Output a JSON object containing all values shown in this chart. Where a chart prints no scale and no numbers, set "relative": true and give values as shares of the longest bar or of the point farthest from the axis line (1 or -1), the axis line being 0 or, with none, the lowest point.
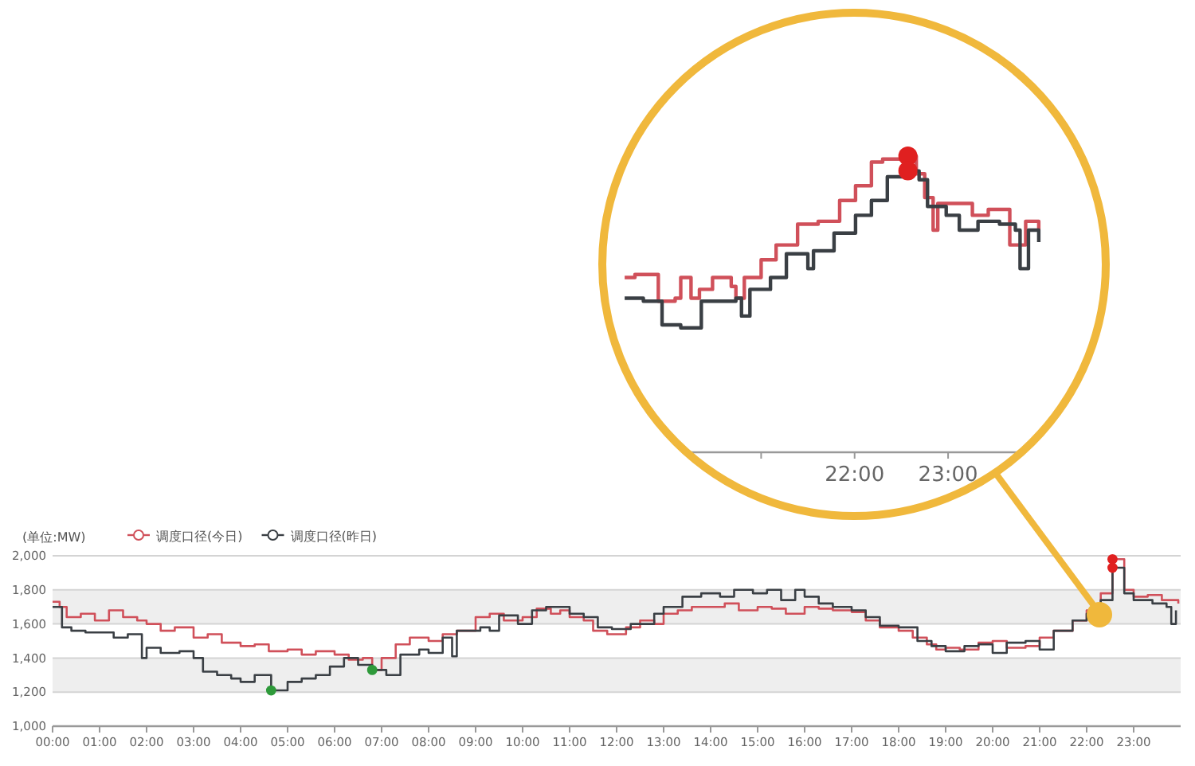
{
  "chart_data": [
    {
      "type": "step",
      "ylabel": "(单位:MW)",
      "legend": "top left",
      "grid": "y",
      "xlim": [
        0,
        24
      ],
      "ylim": [
        1000,
        2000
      ],
      "xticks": [
        {
          "value": 0,
          "label": "00:00"
        },
        {
          "value": 1,
          "label": "01:00"
        },
        {
          "value": 2,
          "label": "02:00"
        },
        {
          "value": 3,
          "label": "03:00"
        },
        {
          "value": 4,
          "label": "04:00"
        },
        {
          "value": 5,
          "label": "05:00"
        },
        {
          "value": 6,
          "label": "06:00"
        },
        {
          "value": 7,
          "label": "07:00"
        },
        {
          "value": 8,
          "label": "08:00"
        },
        {
          "value": 9,
          "label": "09:00"
        },
        {
          "value": 10,
          "label": "10:00"
        },
        {
          "value": 11,
          "label": "11:00"
        },
        {
          "value": 12,
          "label": "12:00"
        },
        {
          "value": 13,
          "label": "13:00"
        },
        {
          "value": 14,
          "label": "14:00"
        },
        {
          "value": 15,
          "label": "15:00"
        },
        {
          "value": 16,
          "label": "16:00"
        },
        {
          "value": 17,
          "label": "17:00"
        },
        {
          "value": 18,
          "label": "18:00"
        },
        {
          "value": 19,
          "label": "19:00"
        },
        {
          "value": 20,
          "label": "20:00"
        },
        {
          "value": 21,
          "label": "21:00"
        },
        {
          "value": 22,
          "label": "22:00"
        },
        {
          "value": 23,
          "label": "23:00"
        }
      ],
      "yticks": [
        {
          "value": 1000,
          "label": "1,000"
        },
        {
          "value": 1200,
          "label": "1,200"
        },
        {
          "value": 1400,
          "label": "1,400"
        },
        {
          "value": 1600,
          "label": "1,600"
        },
        {
          "value": 1800,
          "label": "1,800"
        },
        {
          "value": 2000,
          "label": "2,000"
        }
      ],
      "bands": [
        {
          "axis": "y",
          "from": 1200,
          "to": 1400,
          "color": "#eeeeee"
        },
        {
          "axis": "y",
          "from": 1600,
          "to": 1800,
          "color": "#eeeeee"
        }
      ],
      "series": [
        {
          "name": "调度口径(今日)",
          "color": "#d0505a",
          "x": [
            0,
            0.15,
            0.3,
            0.6,
            0.9,
            1.2,
            1.5,
            1.8,
            2.0,
            2.3,
            2.6,
            3.0,
            3.3,
            3.6,
            4.0,
            4.3,
            4.6,
            5.0,
            5.3,
            5.6,
            6.0,
            6.3,
            6.6,
            6.8,
            7.0,
            7.3,
            7.6,
            8.0,
            8.3,
            8.6,
            9.0,
            9.3,
            9.6,
            10.0,
            10.3,
            10.6,
            10.8,
            11.0,
            11.3,
            11.5,
            11.8,
            12.2,
            12.5,
            12.8,
            13.0,
            13.3,
            13.6,
            14.0,
            14.3,
            14.6,
            15.0,
            15.3,
            15.6,
            16.0,
            16.3,
            16.6,
            17.0,
            17.3,
            17.6,
            18.0,
            18.3,
            18.6,
            18.8,
            19.0,
            19.3,
            19.7,
            20.0,
            20.3,
            20.7,
            21.0,
            21.3,
            21.7,
            22.0,
            22.3,
            22.55,
            22.8,
            23.0,
            23.3,
            23.6,
            23.95
          ],
          "values": [
            1730,
            1700,
            1640,
            1660,
            1620,
            1680,
            1640,
            1620,
            1600,
            1560,
            1580,
            1520,
            1540,
            1490,
            1470,
            1480,
            1440,
            1450,
            1420,
            1440,
            1420,
            1390,
            1400,
            1330,
            1400,
            1480,
            1520,
            1500,
            1540,
            1560,
            1640,
            1660,
            1620,
            1640,
            1690,
            1660,
            1680,
            1640,
            1620,
            1560,
            1540,
            1580,
            1620,
            1600,
            1660,
            1680,
            1700,
            1700,
            1720,
            1680,
            1700,
            1690,
            1660,
            1700,
            1690,
            1680,
            1670,
            1620,
            1580,
            1560,
            1520,
            1480,
            1450,
            1460,
            1450,
            1490,
            1500,
            1460,
            1470,
            1520,
            1560,
            1620,
            1680,
            1780,
            1980,
            1800,
            1760,
            1770,
            1740,
            1720
          ]
        },
        {
          "name": "调度口径(昨日)",
          "color": "#3a3f44",
          "x": [
            0,
            0.2,
            0.4,
            0.7,
            1.0,
            1.3,
            1.6,
            1.9,
            2.0,
            2.3,
            2.7,
            3.0,
            3.2,
            3.5,
            3.8,
            4.0,
            4.3,
            4.65,
            5.0,
            5.3,
            5.6,
            5.9,
            6.2,
            6.5,
            6.8,
            7.1,
            7.4,
            7.8,
            8.0,
            8.3,
            8.5,
            8.6,
            9.1,
            9.3,
            9.5,
            9.9,
            10.2,
            10.5,
            10.8,
            11.0,
            11.3,
            11.6,
            11.9,
            12.3,
            12.8,
            13.0,
            13.4,
            13.8,
            14.2,
            14.5,
            14.9,
            15.2,
            15.5,
            15.8,
            16.0,
            16.3,
            16.6,
            17.0,
            17.3,
            17.6,
            18.0,
            18.4,
            18.7,
            19.0,
            19.4,
            19.7,
            20.0,
            20.3,
            20.7,
            21.0,
            21.3,
            21.7,
            22.0,
            22.3,
            22.55,
            22.8,
            23.0,
            23.4,
            23.7,
            23.8,
            23.9
          ],
          "values": [
            1700,
            1580,
            1560,
            1550,
            1550,
            1520,
            1540,
            1400,
            1460,
            1430,
            1440,
            1400,
            1320,
            1300,
            1280,
            1260,
            1300,
            1210,
            1260,
            1280,
            1300,
            1350,
            1400,
            1360,
            1330,
            1300,
            1420,
            1450,
            1430,
            1520,
            1410,
            1560,
            1580,
            1560,
            1650,
            1600,
            1680,
            1700,
            1700,
            1660,
            1640,
            1580,
            1570,
            1600,
            1660,
            1700,
            1760,
            1780,
            1760,
            1800,
            1780,
            1800,
            1740,
            1800,
            1760,
            1720,
            1700,
            1680,
            1640,
            1590,
            1580,
            1500,
            1470,
            1440,
            1470,
            1480,
            1430,
            1490,
            1500,
            1450,
            1560,
            1620,
            1660,
            1740,
            1930,
            1780,
            1740,
            1720,
            1700,
            1600,
            1680
          ]
        },
        {
          "type": "scatter",
          "marker": "circle",
          "x": [
            4.65,
            6.8,
            22.55,
            22.55
          ],
          "values": [
            1210,
            1330,
            1980,
            1930
          ],
          "colors": [
            "#2e9a3a",
            "#2e9a3a",
            "#e02020",
            "#e02020"
          ]
        }
      ]
    },
    {
      "type": "step",
      "tick_labels": "x",
      "relative": true,
      "xlim": [
        19.5,
        24
      ],
      "xticks": [
        {
          "value": 21,
          "label": null
        },
        {
          "value": 22,
          "label": "22:00"
        },
        {
          "value": 23,
          "label": "23:00"
        }
      ],
      "series": [
        {
          "color": "#d0505a",
          "x": [
            19.54,
            19.65,
            19.88,
            19.9,
            20.08,
            20.14,
            20.25,
            20.34,
            20.48,
            20.68,
            20.73,
            20.82,
            21.0,
            21.16,
            21.39,
            21.61,
            21.84,
            22.01,
            22.18,
            22.3,
            22.41,
            22.57,
            22.66,
            22.75,
            22.84,
            22.89,
            23.09,
            23.26,
            23.43,
            23.66,
            23.83,
            23.97
          ],
          "values": [
            0.59,
            0.6,
            0.6,
            0.51,
            0.52,
            0.59,
            0.52,
            0.55,
            0.59,
            0.56,
            0.52,
            0.59,
            0.65,
            0.7,
            0.77,
            0.78,
            0.85,
            0.9,
            0.98,
            0.99,
            0.99,
            1,
            0.94,
            0.86,
            0.75,
            0.84,
            0.84,
            0.8,
            0.82,
            0.7,
            0.78,
            0.75
          ]
        },
        {
          "color": "#3a3f44",
          "x": [
            19.54,
            19.74,
            19.94,
            20.14,
            20.36,
            20.73,
            20.79,
            20.88,
            21.1,
            21.27,
            21.5,
            21.56,
            21.78,
            22.01,
            22.18,
            22.35,
            22.57,
            22.69,
            22.78,
            22.98,
            23.12,
            23.32,
            23.55,
            23.72,
            23.77,
            23.86,
            23.97
          ],
          "values": [
            0.52,
            0.51,
            0.43,
            0.42,
            0.51,
            0.52,
            0.46,
            0.55,
            0.59,
            0.67,
            0.62,
            0.68,
            0.74,
            0.8,
            0.85,
            0.93,
            0.95,
            0.92,
            0.83,
            0.8,
            0.75,
            0.78,
            0.77,
            0.75,
            0.62,
            0.75,
            0.71
          ]
        },
        {
          "type": "scatter",
          "marker": "circle",
          "x": [
            22.57,
            22.57
          ],
          "values": [
            1,
            0.95
          ],
          "colors": [
            "#e02020",
            "#e02020"
          ]
        }
      ]
    }
  ]
}
